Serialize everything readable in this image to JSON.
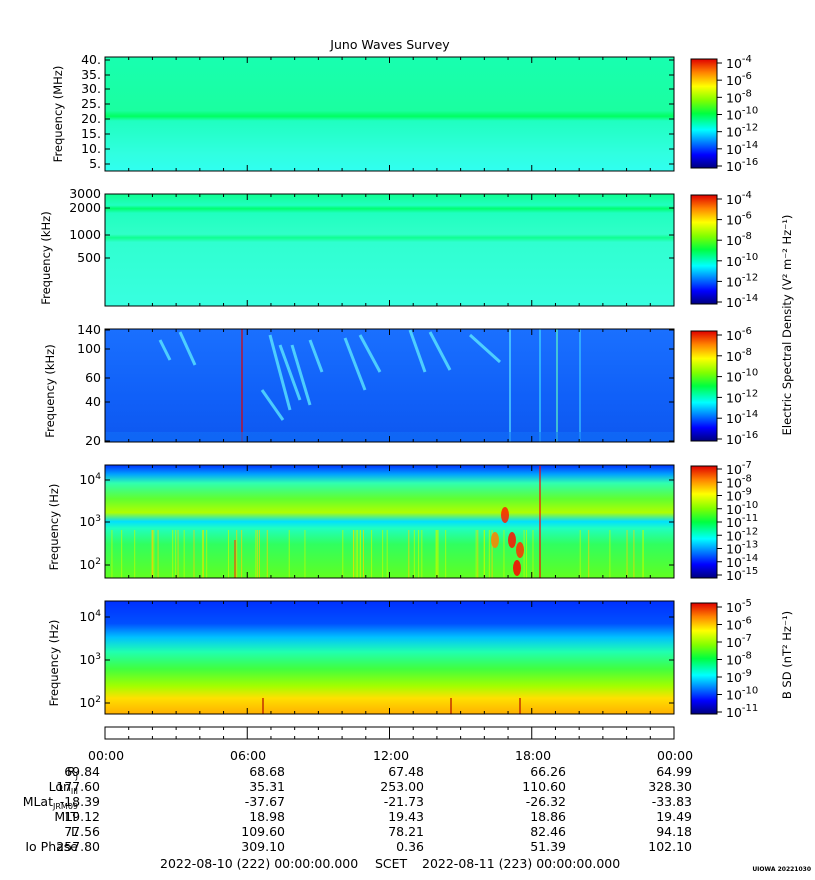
{
  "title": "Juno Waves Survey",
  "colors": {
    "background": "#ffffff",
    "jet": [
      "#00007f",
      "#0000ff",
      "#0080ff",
      "#00ffff",
      "#00ff80",
      "#00ff00",
      "#80ff00",
      "#ffff00",
      "#ff8000",
      "#ff0000",
      "#7f0000"
    ]
  },
  "panels": [
    {
      "ylabel": "Frequency (MHz)",
      "ticks": [
        "40.",
        "35.",
        "30.",
        "25.",
        "20.",
        "15.",
        "10.",
        "5."
      ],
      "colorbar_exponents": [
        "-4",
        "-6",
        "-8",
        "-10",
        "-12",
        "-14",
        "-16"
      ]
    },
    {
      "ylabel": "Frequency (kHz)",
      "ticks": [
        "3000",
        "2000",
        "1000",
        "500"
      ],
      "colorbar_exponents": [
        "-4",
        "-6",
        "-8",
        "-10",
        "-12",
        "-14"
      ]
    },
    {
      "ylabel": "Frequency (kHz)",
      "ticks": [
        "140",
        "100",
        "60",
        "40",
        "20"
      ],
      "colorbar_exponents": [
        "-6",
        "-8",
        "-10",
        "-12",
        "-14",
        "-16"
      ]
    },
    {
      "ylabel": "Frequency (Hz)",
      "ticks": [
        [
          "10",
          "4"
        ],
        [
          "10",
          "3"
        ],
        [
          "10",
          "2"
        ]
      ],
      "colorbar_exponents": [
        "-7",
        "-8",
        "-9",
        "-10",
        "-11",
        "-12",
        "-13",
        "-14",
        "-15"
      ]
    },
    {
      "ylabel": "Frequency (Hz)",
      "ticks": [
        [
          "10",
          "4"
        ],
        [
          "10",
          "3"
        ],
        [
          "10",
          "2"
        ]
      ],
      "colorbar_exponents": [
        "-5",
        "-6",
        "-7",
        "-8",
        "-9",
        "-10",
        "-11"
      ]
    }
  ],
  "colorbar_labels": {
    "electric": "Electric Spectral Density (V² m⁻² Hz⁻¹)",
    "magnetic": "B SD (nT² Hz⁻¹)"
  },
  "time_ticks": [
    "00:00",
    "06:00",
    "12:00",
    "18:00",
    "00:00"
  ],
  "ephemeris": [
    {
      "label": "R",
      "sub": "J",
      "values": [
        "69.84",
        "68.68",
        "67.48",
        "66.26",
        "64.99"
      ]
    },
    {
      "label": "Lon",
      "sub": "III",
      "values": [
        "177.60",
        "35.31",
        "253.00",
        "110.60",
        "328.30"
      ]
    },
    {
      "label": "MLat",
      "sub": "JRM09",
      "values": [
        "-18.39",
        "-37.67",
        "-21.73",
        "-26.32",
        "-33.83"
      ]
    },
    {
      "label": "MLT",
      "sub": "",
      "values": [
        "19.12",
        "18.98",
        "19.43",
        "18.86",
        "19.49"
      ]
    },
    {
      "label": "L",
      "sub": "",
      "values": [
        "77.56",
        "109.60",
        "78.21",
        "82.46",
        "94.18"
      ]
    },
    {
      "label": "Io Phase",
      "sub": "",
      "values": [
        "257.80",
        "309.10",
        "0.36",
        "51.39",
        "102.10"
      ]
    }
  ],
  "scet": {
    "start": "2022-08-10 (222) 00:00:00.000",
    "mid": "SCET",
    "end": "2022-08-11 (223) 00:00:00.000"
  },
  "footer": "UIOWA 20221030",
  "chart_data": {
    "type": "heatmap",
    "title": "Juno Waves Survey",
    "x_range": [
      "2022-08-10 00:00",
      "2022-08-11 00:00"
    ],
    "panels": [
      {
        "quantity": "electric spectral density",
        "ylabel": "Frequency (MHz)",
        "ylim": [
          4,
          41
        ],
        "yscale": "linear",
        "clim_exponent": [
          -17,
          -4
        ]
      },
      {
        "quantity": "electric spectral density",
        "ylabel": "Frequency (kHz)",
        "ylim": [
          150,
          3100
        ],
        "yscale": "log",
        "clim_exponent": [
          -15,
          -3
        ]
      },
      {
        "quantity": "electric spectral density",
        "ylabel": "Frequency (kHz)",
        "ylim": [
          20,
          140
        ],
        "yscale": "log",
        "clim_exponent": [
          -16,
          -6
        ]
      },
      {
        "quantity": "electric spectral density",
        "ylabel": "Frequency (Hz)",
        "ylim": [
          50,
          20000
        ],
        "yscale": "log",
        "clim_exponent": [
          -15,
          -7
        ]
      },
      {
        "quantity": "magnetic spectral density",
        "ylabel": "Frequency (Hz)",
        "ylim": [
          50,
          25000
        ],
        "yscale": "log",
        "clim_exponent": [
          -11,
          -4.5
        ]
      }
    ]
  }
}
